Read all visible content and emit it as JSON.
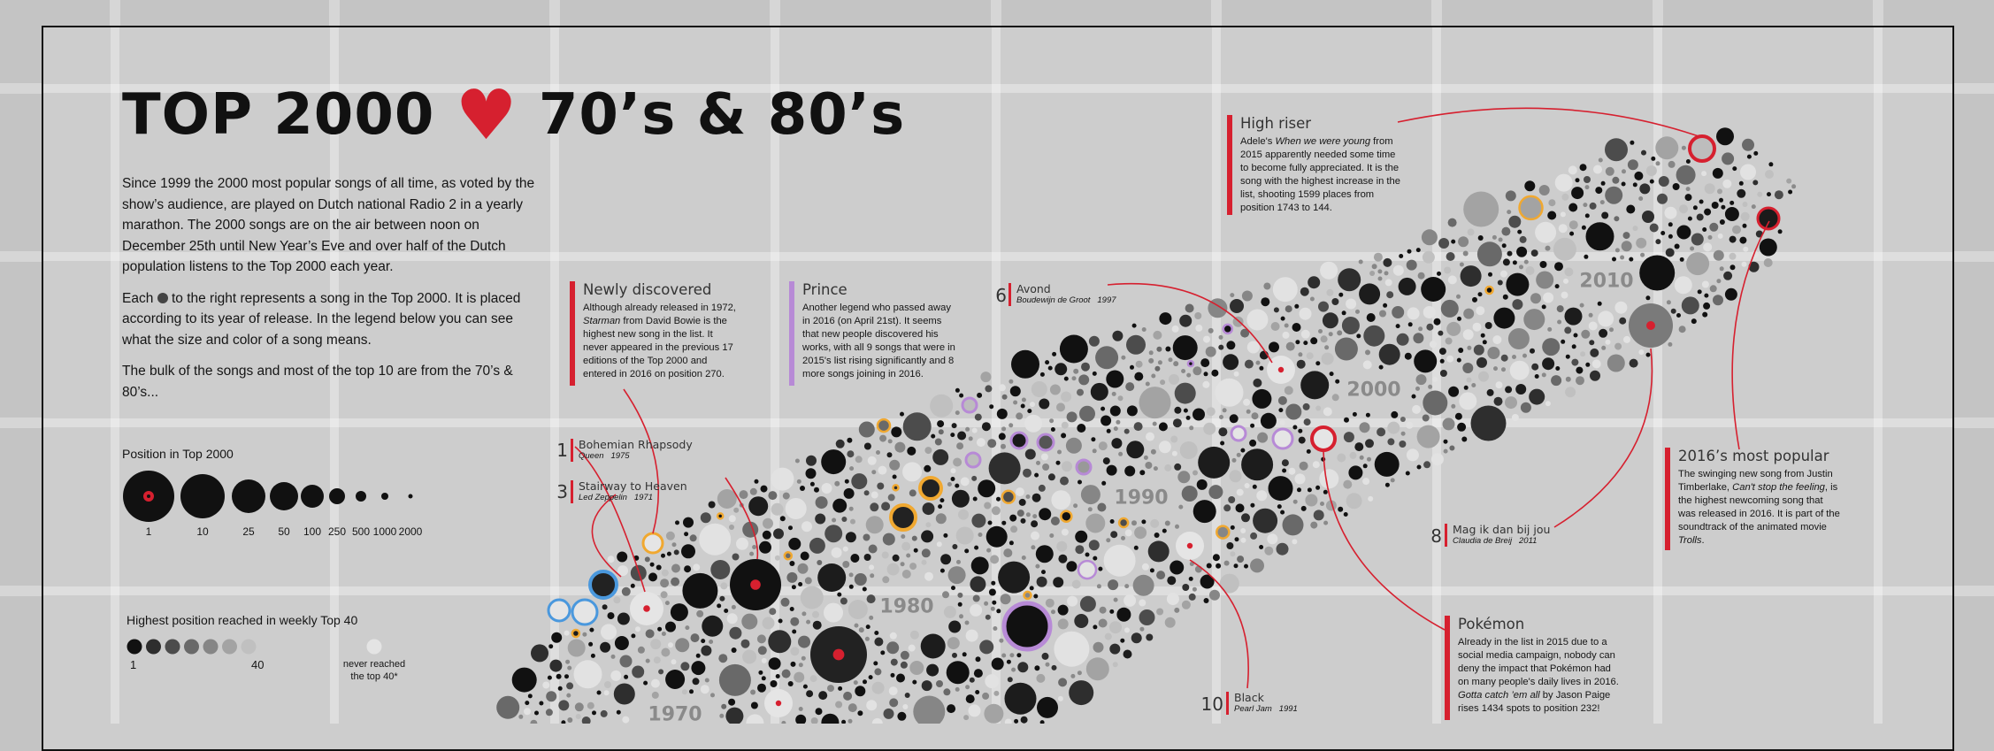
{
  "title": {
    "text_left": "TOP 2000",
    "heart": "♥",
    "text_right": "70’s & 80’s"
  },
  "intro": {
    "p1": "Since 1999 the 2000 most popular songs of all time, as voted by the show’s audience, are played on Dutch national Radio 2 in a yearly marathon. The 2000 songs are on the air between noon on December 25th until New Year’s Eve and over half of the Dutch population listens to the Top 2000 each year.",
    "p2_before": "Each",
    "p2_after": "to the right represents a song in the Top 2000. It is placed according to its year of release. In the legend below you can see what the size and color of a song means.",
    "p3": "The bulk of the songs and most of the top 10 are from the 70’s & 80’s..."
  },
  "legend_position": {
    "title": "Position in Top 2000",
    "items": [
      {
        "label": "1",
        "value": 1
      },
      {
        "label": "10",
        "value": 10
      },
      {
        "label": "25",
        "value": 25
      },
      {
        "label": "50",
        "value": 50
      },
      {
        "label": "100",
        "value": 100
      },
      {
        "label": "250",
        "value": 250
      },
      {
        "label": "500",
        "value": 500
      },
      {
        "label": "1000",
        "value": 1000
      },
      {
        "label": "2000",
        "value": 2000
      }
    ]
  },
  "legend_highest": {
    "title": "Highest position reached in weekly Top 40",
    "min_label": "1",
    "max_label": "40",
    "never_label_1": "never reached",
    "never_label_2": "the top 40*",
    "shades": [
      "#111111",
      "#2e2e2e",
      "#4c4c4c",
      "#696969",
      "#868686",
      "#a3a3a3",
      "#c0c0c0"
    ],
    "never_color": "#e4e4e4"
  },
  "colors": {
    "accent_red": "#d6202f",
    "prince_purple": "#b78ad6",
    "orange": "#f0a830",
    "blue": "#4a98dd"
  },
  "boxes": {
    "high_riser": {
      "title": "High riser",
      "t1": "Adele's ",
      "t1_italic": "When we were young",
      "t2": " from 2015 apparently needed some time to become fully appreciated. It is the song with the highest increase in the list, shooting 1599 places from position 1743 to 144."
    },
    "newly_discovered": {
      "title": "Newly discovered",
      "t1": "Although already released in 1972, ",
      "t1_italic": "Starman",
      "t2": " from David Bowie is the highest new song in the list. It never appeared in the previous 17 editions of the Top 2000 and entered in 2016 on position 270."
    },
    "prince": {
      "title": "Prince",
      "text": "Another legend who passed away in 2016 (on April 21st). It seems that new people discovered his works, with all 9 songs that were in 2015's list rising significantly and 8 more songs joining in 2016."
    },
    "most_popular": {
      "title": "2016’s most popular",
      "t1": "The swinging new song from Justin Timberlake, ",
      "t1_italic": "Can't stop the feeling",
      "t2": ", is the highest newcoming song that was released in 2016. It is part of the soundtrack of the animated movie ",
      "t2_italic": "Trolls",
      "t3": "."
    },
    "pokemon": {
      "title": "Pokémon",
      "t1": "Already in the list in 2015 due to a social media campaign, nobody can deny the impact that Pokémon had on many people's daily lives in 2016. ",
      "t1_italic": "Gotta catch ’em all",
      "t2": " by Jason Paige rises 1434 spots to position 232!"
    }
  },
  "songs": [
    {
      "rank": "1",
      "name": "Bohemian Rhapsody",
      "artist": "Queen",
      "year": "1975"
    },
    {
      "rank": "3",
      "name": "Stairway to Heaven",
      "artist": "Led Zeppelin",
      "year": "1971"
    },
    {
      "rank": "6",
      "name": "Avond",
      "artist": "Boudewijn de Groot",
      "year": "1997"
    },
    {
      "rank": "8",
      "name": "Mag ik dan bij jou",
      "artist": "Claudia de Breij",
      "year": "2011"
    },
    {
      "rank": "10",
      "name": "Black",
      "artist": "Pearl Jam",
      "year": "1991"
    }
  ],
  "year_labels": [
    "1970",
    "1980",
    "1990",
    "2000",
    "2010"
  ]
}
